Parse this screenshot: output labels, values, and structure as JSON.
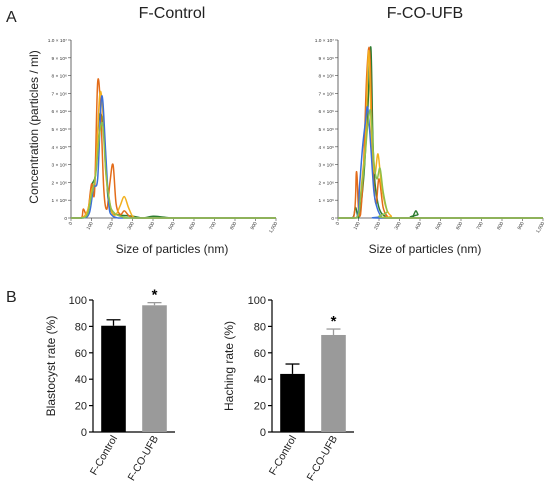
{
  "panel_labels": [
    "A",
    "B"
  ],
  "chart_data": [
    {
      "type": "line",
      "title": "F-Control",
      "xlabel": "Size of particles (nm)",
      "ylabel": "Concentration (particles / ml)",
      "xlim": [
        0,
        1000
      ],
      "ylim": [
        0,
        10000000
      ],
      "x_ticks": [
        0,
        100,
        200,
        300,
        400,
        500,
        600,
        700,
        800,
        900,
        1000
      ],
      "x_tick_labels": [
        "0",
        "100",
        "200",
        "300",
        "400",
        "500",
        "600",
        "700",
        "800",
        "900",
        "1,000"
      ],
      "y_ticks": [
        0,
        1000000,
        2000000,
        3000000,
        4000000,
        5000000,
        6000000,
        7000000,
        8000000,
        9000000,
        10000000
      ],
      "y_tick_labels": [
        "0",
        "1 × 10⁶",
        "2 × 10⁶",
        "3 × 10⁶",
        "4 × 10⁶",
        "5 × 10⁶",
        "6 × 10⁶",
        "7 × 10⁶",
        "8 × 10⁶",
        "9 × 10⁶",
        "1.0 × 10⁷"
      ],
      "grid": false,
      "series": [
        {
          "color": "#2E7D32",
          "x": [
            0,
            50,
            80,
            100,
            120,
            135,
            150,
            165,
            180,
            200,
            220,
            250,
            300,
            350,
            400,
            450,
            500,
            600,
            700,
            800,
            900,
            1000
          ],
          "y": [
            0,
            0,
            150000,
            1800000,
            2500000,
            5500000,
            5700000,
            4200000,
            1200000,
            300000,
            200000,
            150000,
            100000,
            0,
            100000,
            50000,
            0,
            0,
            0,
            0,
            0,
            0
          ]
        },
        {
          "color": "#E36C1A",
          "x": [
            0,
            50,
            60,
            80,
            100,
            115,
            130,
            145,
            160,
            175,
            190,
            205,
            220,
            240,
            260,
            280,
            300,
            320,
            400,
            1000
          ],
          "y": [
            0,
            0,
            500000,
            200000,
            1900000,
            1500000,
            7600000,
            6000000,
            1600000,
            500000,
            2000000,
            3000000,
            800000,
            200000,
            400000,
            150000,
            0,
            0,
            0,
            0
          ]
        },
        {
          "color": "#F2B01E",
          "x": [
            0,
            50,
            80,
            100,
            120,
            140,
            155,
            170,
            185,
            200,
            220,
            240,
            260,
            280,
            300,
            320,
            350,
            400,
            1000
          ],
          "y": [
            0,
            0,
            400000,
            1500000,
            2500000,
            6900000,
            6000000,
            2500000,
            1200000,
            300000,
            200000,
            700000,
            1200000,
            600000,
            100000,
            0,
            0,
            0,
            0
          ]
        },
        {
          "color": "#3B6FD8",
          "x": [
            0,
            60,
            90,
            110,
            130,
            145,
            155,
            170,
            185,
            200,
            230,
            260,
            300,
            400,
            1000
          ],
          "y": [
            0,
            0,
            300000,
            1700000,
            2200000,
            6200000,
            6600000,
            3500000,
            700000,
            150000,
            0,
            0,
            0,
            0,
            0
          ]
        },
        {
          "color": "#8FC04A",
          "x": [
            0,
            50,
            80,
            100,
            120,
            140,
            155,
            170,
            190,
            210,
            240,
            280,
            320,
            1000
          ],
          "y": [
            0,
            0,
            200000,
            1300000,
            2400000,
            4800000,
            5200000,
            2600000,
            800000,
            300000,
            100000,
            0,
            0,
            0
          ]
        }
      ]
    },
    {
      "type": "line",
      "title": "F-CO-UFB",
      "xlabel": "Size of particles (nm)",
      "ylabel": "",
      "xlim": [
        0,
        1000
      ],
      "ylim": [
        0,
        10000000
      ],
      "x_ticks": [
        0,
        100,
        200,
        300,
        400,
        500,
        600,
        700,
        800,
        900,
        1000
      ],
      "x_tick_labels": [
        "0",
        "100",
        "200",
        "300",
        "400",
        "500",
        "600",
        "700",
        "800",
        "900",
        "1,000"
      ],
      "y_ticks": [
        0,
        1000000,
        2000000,
        3000000,
        4000000,
        5000000,
        6000000,
        7000000,
        8000000,
        9000000,
        10000000
      ],
      "y_tick_labels": [
        "0",
        "1 × 10⁶",
        "2 × 10⁶",
        "3 × 10⁶",
        "4 × 10⁶",
        "5 × 10⁶",
        "6 × 10⁶",
        "7 × 10⁶",
        "8 × 10⁶",
        "9 × 10⁶",
        "1.0 × 10⁷"
      ],
      "grid": false,
      "series": [
        {
          "color": "#2E7D32",
          "x": [
            0,
            70,
            85,
            100,
            115,
            130,
            145,
            160,
            170,
            180,
            195,
            210,
            230,
            260,
            300,
            360,
            370,
            380,
            390,
            400,
            1000
          ],
          "y": [
            0,
            0,
            600000,
            0,
            1000000,
            3000000,
            6000000,
            9600000,
            4500000,
            2000000,
            800000,
            300000,
            100000,
            0,
            0,
            0,
            200000,
            400000,
            200000,
            0,
            0
          ]
        },
        {
          "color": "#E36C1A",
          "x": [
            0,
            75,
            90,
            100,
            110,
            125,
            140,
            155,
            170,
            185,
            200,
            220,
            240,
            260,
            1000
          ],
          "y": [
            0,
            0,
            2600000,
            500000,
            200000,
            3000000,
            8000000,
            9300000,
            3000000,
            800000,
            2200000,
            600000,
            100000,
            0,
            0
          ]
        },
        {
          "color": "#F2B01E",
          "x": [
            0,
            80,
            100,
            120,
            135,
            150,
            165,
            180,
            195,
            210,
            225,
            240,
            260,
            280,
            1000
          ],
          "y": [
            0,
            0,
            300000,
            2500000,
            4500000,
            9400000,
            4000000,
            2500000,
            3600000,
            2000000,
            1000000,
            400000,
            100000,
            0,
            0
          ]
        },
        {
          "color": "#3B6FD8",
          "x": [
            0,
            90,
            105,
            120,
            135,
            145,
            160,
            175,
            190,
            210,
            230,
            1000
          ],
          "y": [
            0,
            0,
            1800000,
            4000000,
            5500000,
            6200000,
            4000000,
            1500000,
            600000,
            100000,
            0,
            0
          ]
        },
        {
          "color": "#8FC04A",
          "x": [
            0,
            90,
            110,
            130,
            145,
            160,
            175,
            190,
            205,
            220,
            240,
            260,
            1000
          ],
          "y": [
            0,
            0,
            1200000,
            3200000,
            5200000,
            6000000,
            3200000,
            2200000,
            2800000,
            1500000,
            400000,
            0,
            0
          ]
        }
      ]
    },
    {
      "type": "bar",
      "title": "",
      "xlabel": "",
      "ylabel": "Blastocyst rate (%)",
      "ylim": [
        0,
        100
      ],
      "y_ticks": [
        0,
        20,
        40,
        60,
        80,
        100
      ],
      "categories": [
        "F-Control",
        "F-CO-UFB"
      ],
      "values": [
        80.5,
        96
      ],
      "errors": [
        4.5,
        2
      ],
      "bar_colors": [
        "#000000",
        "#9a9a9a"
      ],
      "significance": [
        "",
        "*"
      ]
    },
    {
      "type": "bar",
      "title": "",
      "xlabel": "",
      "ylabel": "Haching rate (%)",
      "ylim": [
        0,
        100
      ],
      "y_ticks": [
        0,
        20,
        40,
        60,
        80,
        100
      ],
      "categories": [
        "F-Control",
        "F-CO-UFB"
      ],
      "values": [
        44,
        73.5
      ],
      "errors": [
        7.5,
        4.5
      ],
      "bar_colors": [
        "#000000",
        "#9a9a9a"
      ],
      "significance": [
        "",
        "*"
      ]
    }
  ]
}
